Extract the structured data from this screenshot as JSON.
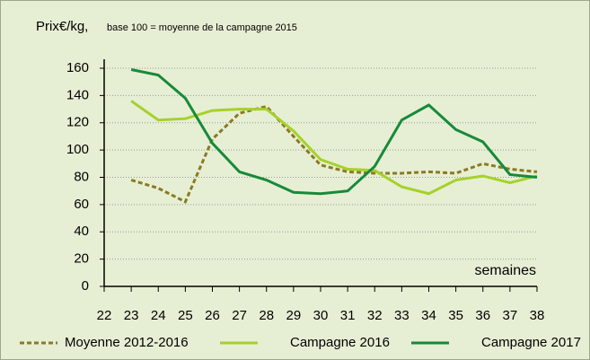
{
  "chart_data": {
    "type": "line",
    "y_label": "Prix€/kg,",
    "subtitle": "base 100 = moyenne de la campagne 2015",
    "x_label": "semaines",
    "x": [
      23,
      24,
      25,
      26,
      27,
      28,
      29,
      30,
      31,
      32,
      33,
      34,
      35,
      36,
      37,
      38
    ],
    "series": [
      {
        "name": "Moyenne 2012-2016",
        "color": "#8a7a22",
        "dash": true,
        "values": [
          78,
          72,
          62,
          108,
          127,
          132,
          110,
          89,
          84,
          83,
          83,
          84,
          83,
          90,
          86,
          84
        ]
      },
      {
        "name": "Campagne 2016",
        "color": "#a6d12a",
        "dash": false,
        "values": [
          136,
          122,
          123,
          129,
          130,
          130,
          114,
          93,
          86,
          85,
          73,
          68,
          78,
          81,
          76,
          81
        ]
      },
      {
        "name": "Campagne 2017",
        "color": "#178a3a",
        "dash": false,
        "values": [
          159,
          155,
          138,
          105,
          84,
          78,
          69,
          68,
          70,
          88,
          122,
          133,
          115,
          106,
          82,
          80
        ]
      }
    ],
    "xlim": [
      22,
      38
    ],
    "xticks": [
      22,
      23,
      24,
      25,
      26,
      27,
      28,
      29,
      30,
      31,
      32,
      33,
      34,
      35,
      36,
      37,
      38
    ],
    "ylim": [
      0,
      160
    ],
    "yticks": [
      0,
      20,
      40,
      60,
      80,
      100,
      120,
      140,
      160
    ],
    "grid": true
  }
}
